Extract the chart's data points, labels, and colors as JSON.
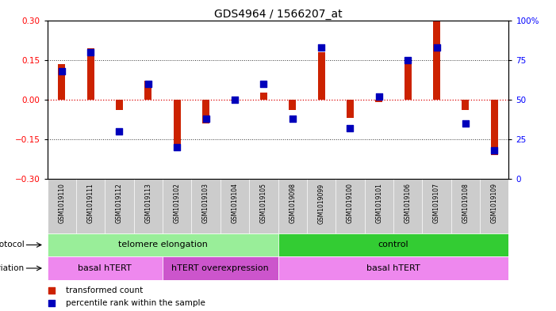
{
  "title": "GDS4964 / 1566207_at",
  "samples": [
    "GSM1019110",
    "GSM1019111",
    "GSM1019112",
    "GSM1019113",
    "GSM1019102",
    "GSM1019103",
    "GSM1019104",
    "GSM1019105",
    "GSM1019098",
    "GSM1019099",
    "GSM1019100",
    "GSM1019101",
    "GSM1019106",
    "GSM1019107",
    "GSM1019108",
    "GSM1019109"
  ],
  "red_values": [
    0.135,
    0.195,
    -0.04,
    0.07,
    -0.195,
    -0.09,
    -0.005,
    0.025,
    -0.04,
    0.18,
    -0.07,
    -0.01,
    0.155,
    0.295,
    -0.04,
    -0.21
  ],
  "blue_values": [
    68,
    80,
    30,
    60,
    20,
    38,
    50,
    60,
    38,
    83,
    32,
    52,
    75,
    83,
    35,
    18
  ],
  "ylim_left": [
    -0.3,
    0.3
  ],
  "ylim_right": [
    0,
    100
  ],
  "yticks_left": [
    -0.3,
    -0.15,
    0,
    0.15,
    0.3
  ],
  "yticks_right": [
    0,
    25,
    50,
    75,
    100
  ],
  "protocol_groups": [
    {
      "label": "telomere elongation",
      "start": 0,
      "end": 8,
      "color": "#99EE99"
    },
    {
      "label": "control",
      "start": 8,
      "end": 16,
      "color": "#33CC33"
    }
  ],
  "genotype_groups": [
    {
      "label": "basal hTERT",
      "start": 0,
      "end": 4,
      "color": "#EE88EE"
    },
    {
      "label": "hTERT overexpression",
      "start": 4,
      "end": 8,
      "color": "#CC55CC"
    },
    {
      "label": "basal hTERT",
      "start": 8,
      "end": 16,
      "color": "#EE88EE"
    }
  ],
  "red_color": "#CC2200",
  "blue_color": "#0000BB",
  "zero_line_color": "#DD0000",
  "dotted_line_color": "#333333",
  "legend_red": "transformed count",
  "legend_blue": "percentile rank within the sample",
  "bg_names": "#CCCCCC"
}
